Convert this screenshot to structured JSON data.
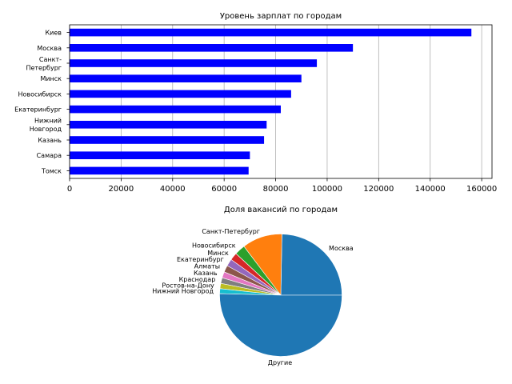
{
  "chart_data": [
    {
      "type": "bar",
      "orientation": "horizontal",
      "title": "Уровень зарплат по городам",
      "categories": [
        "Киев",
        "Москва",
        "Санкт-\nПетербург",
        "Минск",
        "Новосибирск",
        "Екатеринбург",
        "Нижний\nНовгород",
        "Казань",
        "Самара",
        "Томск"
      ],
      "values": [
        156000,
        110000,
        96000,
        90000,
        86000,
        82000,
        76500,
        75500,
        70000,
        69500
      ],
      "xlim": [
        0,
        164000
      ],
      "xticks": [
        0,
        20000,
        40000,
        60000,
        80000,
        100000,
        120000,
        140000,
        160000
      ],
      "xtick_labels": [
        "0",
        "20000",
        "40000",
        "60000",
        "80000",
        "100000",
        "120000",
        "140000",
        "160000"
      ],
      "grid": "vertical",
      "color": "#0000ff"
    },
    {
      "type": "pie",
      "title": "Доля вакансий по городам",
      "labels": [
        "Москва",
        "Санкт-Петербург",
        "Новосибирск",
        "Минск",
        "Екатеринбург",
        "Алматы",
        "Казань",
        "Краснодар",
        "Ростов-на-Дону",
        "Нижний Новгород",
        "Другие"
      ],
      "values": [
        24.7,
        10.6,
        2.8,
        2.0,
        1.9,
        1.8,
        1.6,
        1.5,
        1.4,
        1.3,
        50.4
      ],
      "colors": [
        "#1f77b4",
        "#ff7f0e",
        "#2ca02c",
        "#d62728",
        "#9467bd",
        "#8c564b",
        "#e377c2",
        "#7f7f7f",
        "#bcbd22",
        "#17becf",
        "#1f77b4"
      ]
    }
  ]
}
